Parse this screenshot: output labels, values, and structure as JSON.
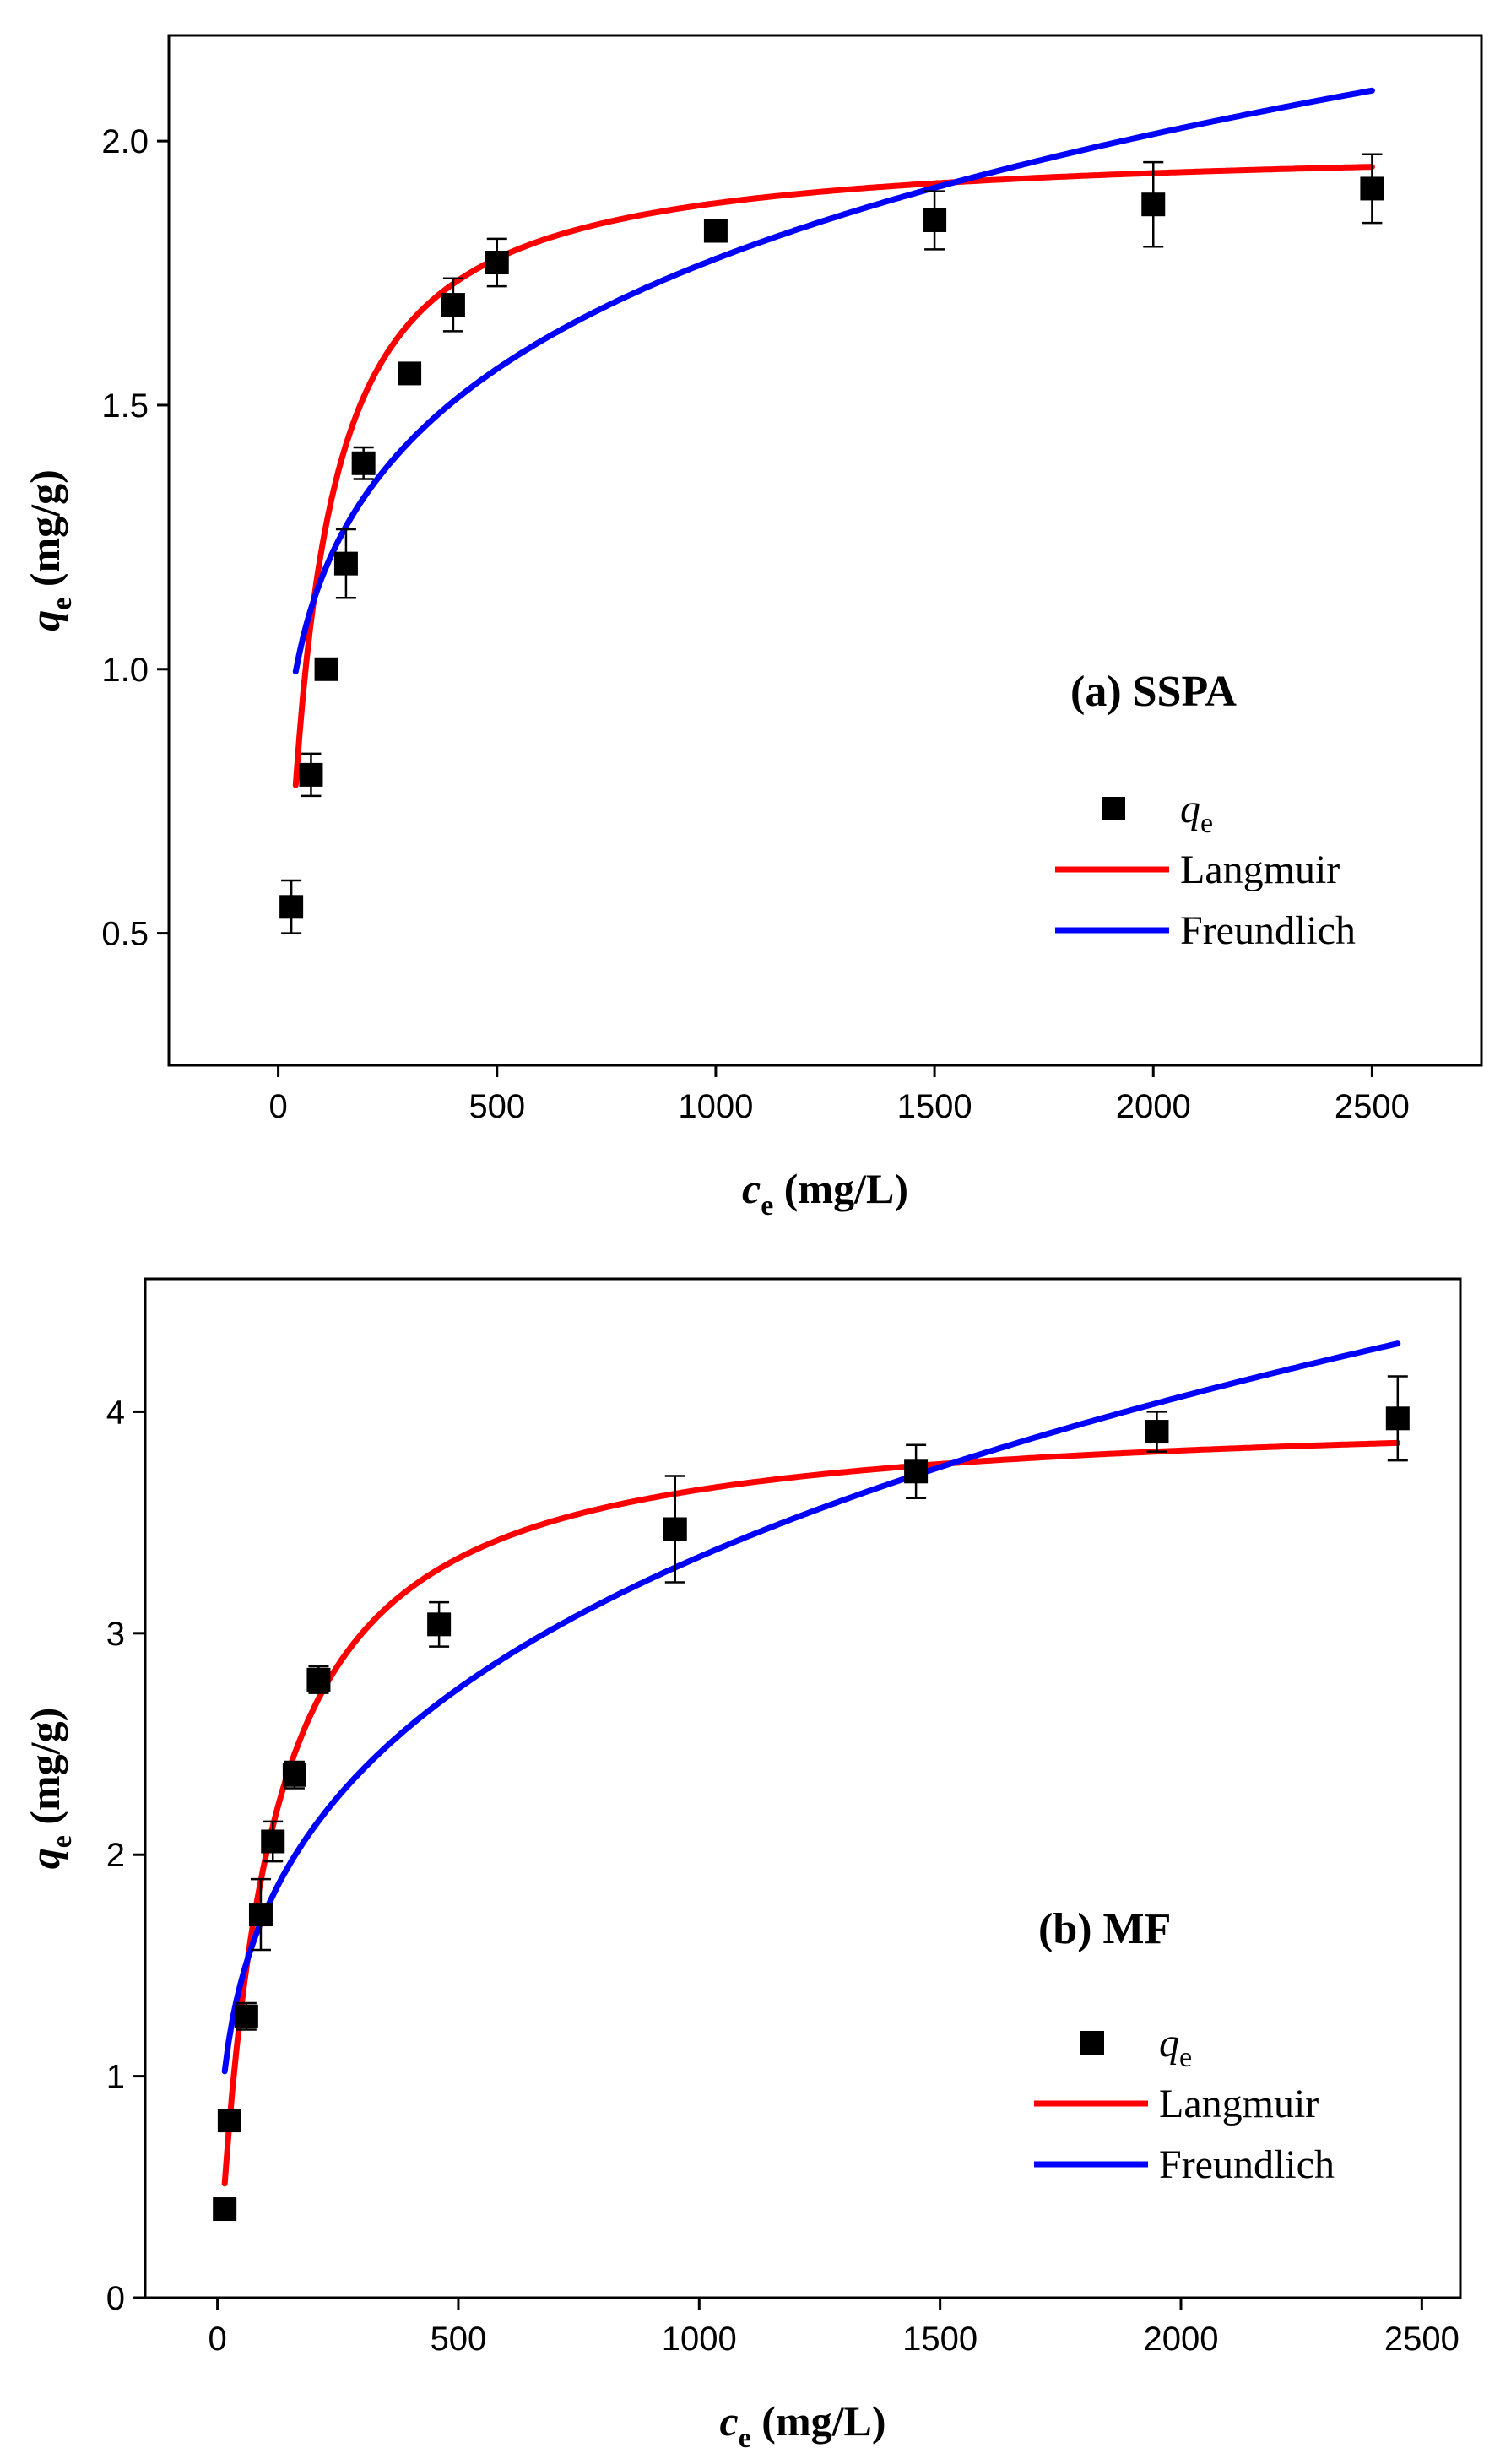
{
  "chart_data": [
    {
      "type": "scatter",
      "panel": "a",
      "title": "(a) SSPA",
      "xlabel": {
        "main": "c",
        "sub": "e",
        "unit": " (mg/L)"
      },
      "ylabel": {
        "main": "q",
        "sub": "e",
        "unit": " (mg/g)"
      },
      "xlim": [
        -250,
        2750
      ],
      "ylim": [
        0.25,
        2.2
      ],
      "xticks": [
        0,
        500,
        1000,
        1500,
        2000,
        2500
      ],
      "yticks": [
        0.5,
        1.0,
        1.5,
        2.0
      ],
      "xtick_labels": [
        "0",
        "500",
        "1000",
        "1500",
        "2000",
        "2500"
      ],
      "ytick_labels": [
        "0.5",
        "1.0",
        "1.5",
        "2.0"
      ],
      "points": [
        {
          "x": 30,
          "y": 0.55,
          "err": 0.05
        },
        {
          "x": 75,
          "y": 0.8,
          "err": 0.04
        },
        {
          "x": 110,
          "y": 1.0,
          "err": 0.01
        },
        {
          "x": 155,
          "y": 1.2,
          "err": 0.065
        },
        {
          "x": 195,
          "y": 1.39,
          "err": 0.03
        },
        {
          "x": 300,
          "y": 1.56,
          "err": 0.01
        },
        {
          "x": 400,
          "y": 1.69,
          "err": 0.05
        },
        {
          "x": 500,
          "y": 1.77,
          "err": 0.045
        },
        {
          "x": 1000,
          "y": 1.83,
          "err": 0.015
        },
        {
          "x": 1500,
          "y": 1.85,
          "err": 0.055
        },
        {
          "x": 2000,
          "y": 1.88,
          "err": 0.08
        },
        {
          "x": 2500,
          "y": 1.91,
          "err": 0.065
        }
      ],
      "series": [
        {
          "name": "Langmuir",
          "color": "#ff0000",
          "model": "langmuir",
          "params": {
            "qm": 2.0,
            "K": 0.016
          },
          "x_range": [
            40,
            2500
          ]
        },
        {
          "name": "Freundlich",
          "color": "#0000ff",
          "model": "freundlich",
          "params": {
            "K": 0.5125,
            "n": 0.18
          },
          "x_range": [
            40,
            2500
          ]
        }
      ],
      "legend": {
        "marker_label": "q",
        "marker_sub": "e",
        "entries": [
          "Langmuir",
          "Freundlich"
        ],
        "position": "lower-right"
      }
    },
    {
      "type": "scatter",
      "panel": "b",
      "title": "(b) MF",
      "xlabel": {
        "main": "c",
        "sub": "e",
        "unit": " (mg/L)"
      },
      "ylabel": {
        "main": "q",
        "sub": "e",
        "unit": " (mg/g)"
      },
      "xlim": [
        -150,
        2580
      ],
      "ylim": [
        0,
        4.6
      ],
      "xticks": [
        0,
        500,
        1000,
        1500,
        2000,
        2500
      ],
      "yticks": [
        0,
        1,
        2,
        3,
        4
      ],
      "xtick_labels": [
        "0",
        "500",
        "1000",
        "1500",
        "2000",
        "2500"
      ],
      "ytick_labels": [
        "0",
        "1",
        "2",
        "3",
        "4"
      ],
      "points": [
        {
          "x": 15,
          "y": 0.4,
          "err": 0.04
        },
        {
          "x": 25,
          "y": 0.8,
          "err": 0.04
        },
        {
          "x": 60,
          "y": 1.27,
          "err": 0.06
        },
        {
          "x": 90,
          "y": 1.73,
          "err": 0.16
        },
        {
          "x": 115,
          "y": 2.06,
          "err": 0.09
        },
        {
          "x": 160,
          "y": 2.36,
          "err": 0.06
        },
        {
          "x": 210,
          "y": 2.79,
          "err": 0.06
        },
        {
          "x": 460,
          "y": 3.04,
          "err": 0.1
        },
        {
          "x": 950,
          "y": 3.47,
          "err": 0.24
        },
        {
          "x": 1450,
          "y": 3.73,
          "err": 0.12
        },
        {
          "x": 1950,
          "y": 3.91,
          "err": 0.09
        },
        {
          "x": 2450,
          "y": 3.97,
          "err": 0.19
        }
      ],
      "series": [
        {
          "name": "Langmuir",
          "color": "#ff0000",
          "model": "langmuir",
          "params": {
            "qm": 4.02,
            "K": 0.0098
          },
          "x_range": [
            15,
            2450
          ]
        },
        {
          "name": "Freundlich",
          "color": "#0000ff",
          "model": "freundlich",
          "params": {
            "K": 0.4755,
            "n": 0.2824
          },
          "x_range": [
            15,
            2450
          ]
        }
      ],
      "legend": {
        "marker_label": "q",
        "marker_sub": "e",
        "entries": [
          "Langmuir",
          "Freundlich"
        ],
        "position": "lower-right"
      }
    }
  ]
}
